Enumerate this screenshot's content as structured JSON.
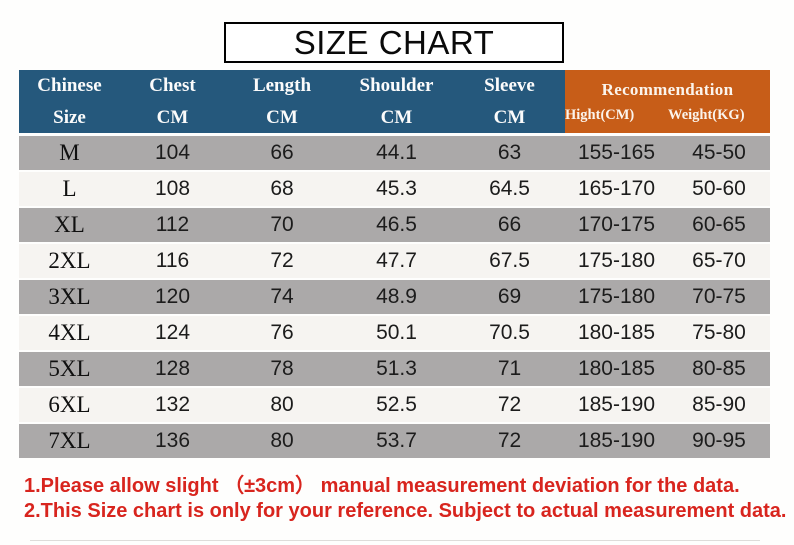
{
  "page_title": "SIZE CHART",
  "colors": {
    "header_blue": "#25587C",
    "header_orange": "#C75D18",
    "row_gray": "#ABA9A9",
    "row_light": "#F6F4F1",
    "note_red": "#D8251E",
    "title_border": "#000000"
  },
  "header": {
    "cols": [
      {
        "l1": "Chinese",
        "l2": "Size"
      },
      {
        "l1": "Chest",
        "l2": "CM"
      },
      {
        "l1": "Length",
        "l2": "CM"
      },
      {
        "l1": "Shoulder",
        "l2": "CM"
      },
      {
        "l1": "Sleeve",
        "l2": "CM"
      }
    ],
    "recommendation": {
      "label": "Recommendation",
      "height": "Hight(CM)",
      "weight": "Weight(KG)"
    }
  },
  "chart_data": {
    "type": "table",
    "title": "SIZE CHART",
    "columns": [
      "Chinese Size",
      "Chest CM",
      "Length CM",
      "Shoulder CM",
      "Sleeve CM",
      "Recommendation Hight(CM)",
      "Recommendation Weight(KG)"
    ],
    "rows": [
      [
        "M",
        "104",
        "66",
        "44.1",
        "63",
        "155-165",
        "45-50"
      ],
      [
        "L",
        "108",
        "68",
        "45.3",
        "64.5",
        "165-170",
        "50-60"
      ],
      [
        "XL",
        "112",
        "70",
        "46.5",
        "66",
        "170-175",
        "60-65"
      ],
      [
        "2XL",
        "116",
        "72",
        "47.7",
        "67.5",
        "175-180",
        "65-70"
      ],
      [
        "3XL",
        "120",
        "74",
        "48.9",
        "69",
        "175-180",
        "70-75"
      ],
      [
        "4XL",
        "124",
        "76",
        "50.1",
        "70.5",
        "180-185",
        "75-80"
      ],
      [
        "5XL",
        "128",
        "78",
        "51.3",
        "71",
        "180-185",
        "80-85"
      ],
      [
        "6XL",
        "132",
        "80",
        "52.5",
        "72",
        "185-190",
        "85-90"
      ],
      [
        "7XL",
        "136",
        "80",
        "53.7",
        "72",
        "185-190",
        "90-95"
      ]
    ]
  },
  "notes": {
    "line1": "1.Please allow slight （±3cm） manual measurement deviation for the data.",
    "line2": "2.This Size chart is only for your reference. Subject to actual measurement data."
  }
}
